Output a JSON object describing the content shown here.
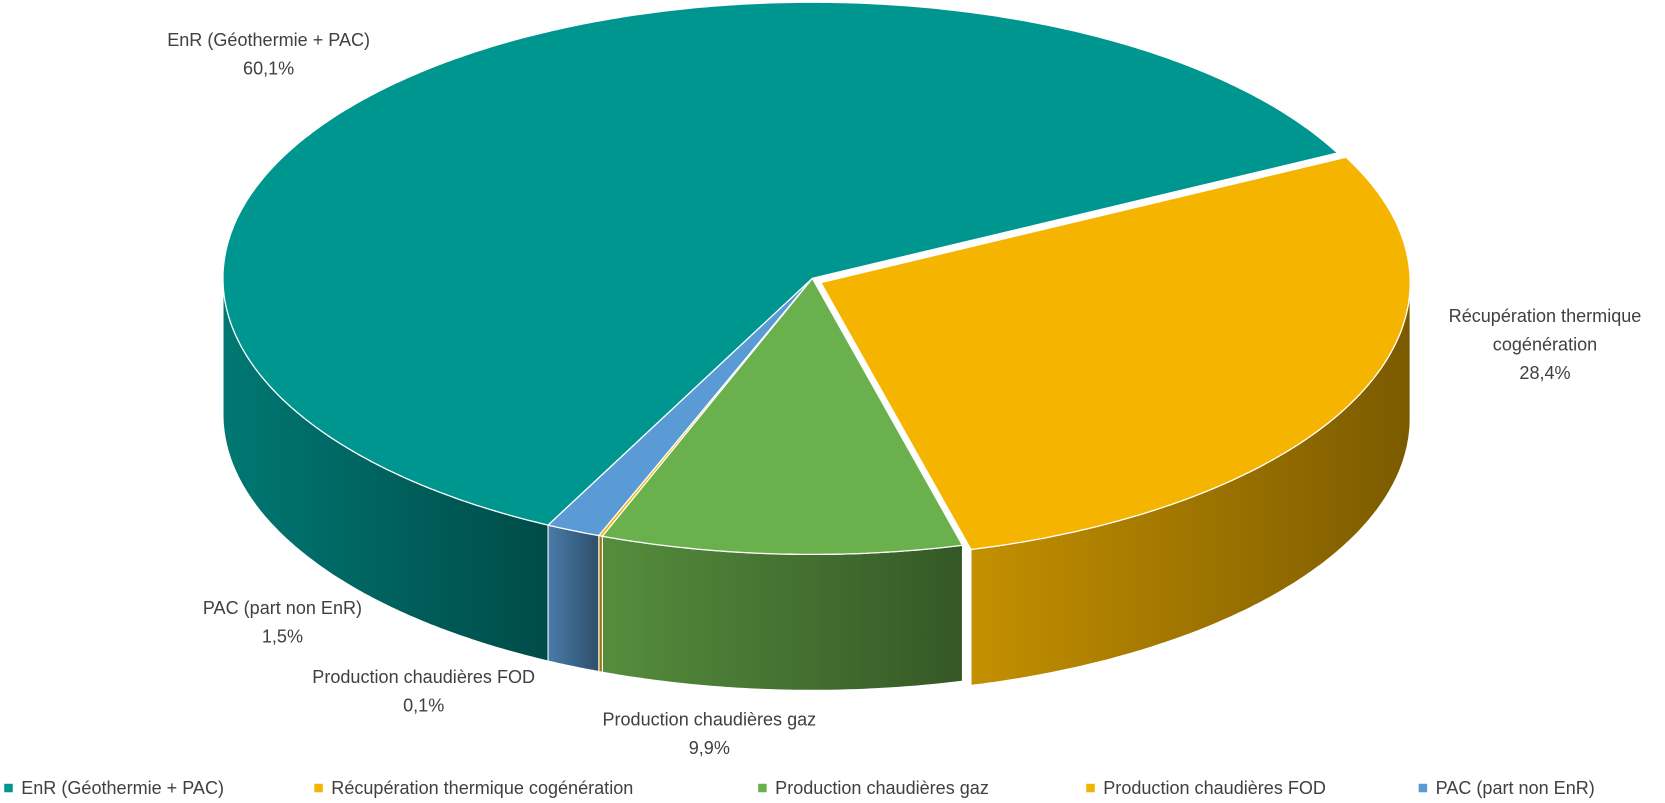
{
  "chart_data": {
    "type": "pie3d",
    "categories": [
      "EnR (Géothermie + PAC)",
      "Récupération thermique cogénération",
      "Production chaudières gaz",
      "Production chaudières FOD",
      "PAC (part non EnR)"
    ],
    "values": [
      60.1,
      28.4,
      9.9,
      0.1,
      1.5
    ],
    "value_labels": [
      "60,1%",
      "28,4%",
      "9,9%",
      "0,1%",
      "1,5%"
    ],
    "colors": [
      "#009690",
      "#f5b400",
      "#6ab04c",
      "#f0b400",
      "#5b9bd5"
    ],
    "legend": "bottom"
  }
}
